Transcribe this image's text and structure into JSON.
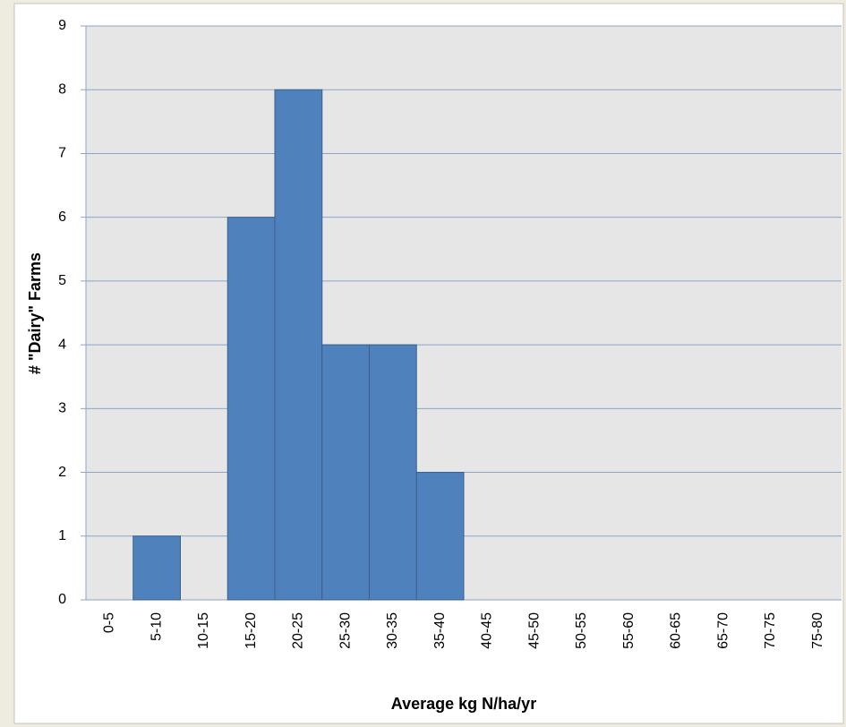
{
  "chart_data": {
    "type": "bar",
    "x_label": "Average kg N/ha/yr",
    "y_label": "# \"Dairy\" Farms",
    "categories": [
      "0-5",
      "5-10",
      "10-15",
      "15-20",
      "20-25",
      "25-30",
      "30-35",
      "35-40",
      "40-45",
      "45-50",
      "50-55",
      "55-60",
      "60-65",
      "65-70",
      "70-75",
      "75-80"
    ],
    "values": [
      0,
      1,
      0,
      6,
      8,
      4,
      4,
      2,
      0,
      0,
      0,
      0,
      0,
      0,
      0,
      0
    ],
    "color": "#4f81bd",
    "ylim": [
      0,
      9
    ],
    "yticks": [
      0,
      1,
      2,
      3,
      4,
      5,
      6,
      7,
      8,
      9
    ],
    "grid": true
  }
}
